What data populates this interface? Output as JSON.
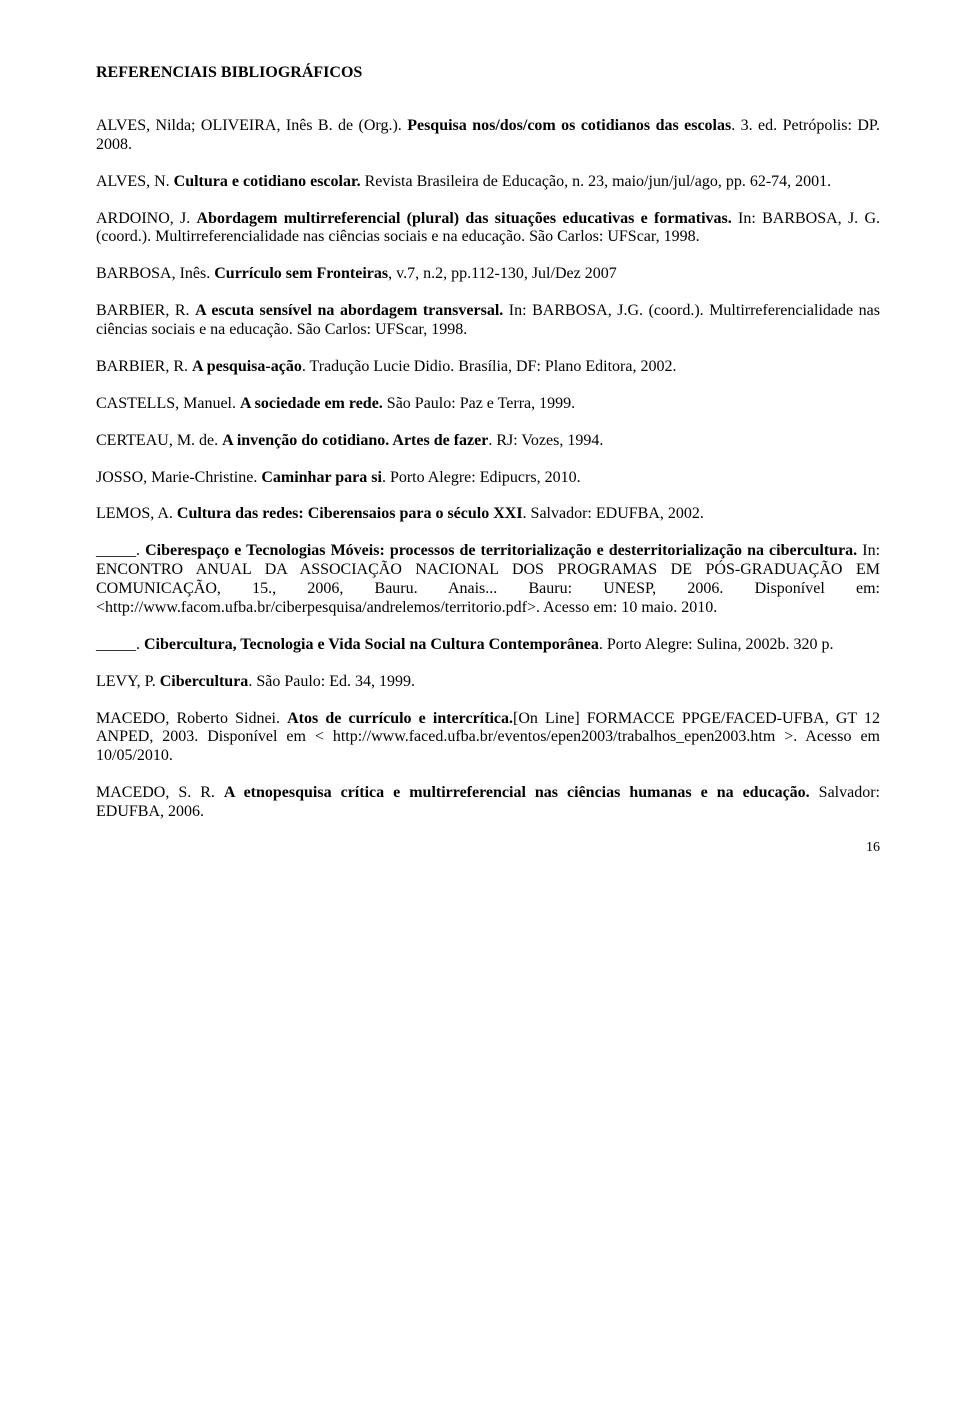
{
  "title": "REFERENCIAIS BIBLIOGRÁFICOS",
  "entries": [
    {
      "html": "ALVES, Nilda; OLIVEIRA, Inês B. de (Org.). <span class='b'>Pesquisa nos/dos/com os cotidianos das escolas</span>. 3. ed. Petrópolis: DP. 2008."
    },
    {
      "html": "ALVES, N. <span class='b'>Cultura e cotidiano escolar.</span> Revista Brasileira de Educação, n. 23, maio/jun/jul/ago, pp. 62-74, 2001."
    },
    {
      "html": "ARDOINO, J. <span class='b'>Abordagem multirreferencial (plural) das situações educativas e formativas.</span> In: BARBOSA, J. G. (coord.). Multirreferencialidade nas ciências sociais e na educação. São Carlos: UFScar, 1998."
    },
    {
      "html": "BARBOSA, Inês. <span class='b'>Currículo sem Fronteiras</span>, v.7, n.2, pp.112-130, Jul/Dez 2007"
    },
    {
      "html": "BARBIER, R. <span class='b'>A escuta sensível na abordagem transversal.</span> In: BARBOSA, J.G. (coord.). Multirreferencialidade nas ciências sociais e na educação. São Carlos: UFScar, 1998."
    },
    {
      "html": "BARBIER, R. <span class='b'>A pesquisa-ação</span>. Tradução Lucie Didio. Brasília, DF: Plano Editora, 2002."
    },
    {
      "html": "CASTELLS, Manuel. <span class='b'>A sociedade em rede.</span> São Paulo: Paz e Terra, 1999."
    },
    {
      "html": "CERTEAU, M. de. <span class='b'>A invenção do cotidiano. Artes de fazer</span>. RJ: Vozes, 1994."
    },
    {
      "html": "JOSSO, Marie-Christine. <span class='b'>Caminhar para si</span>. Porto Alegre: Edipucrs, 2010."
    },
    {
      "html": "LEMOS, A. <span class='b'>Cultura das redes: Ciberensaios para o século XXI</span>. Salvador: EDUFBA, 2002."
    },
    {
      "html": "_____. <span class='b'>Ciberespaço e Tecnologias Móveis: processos de territorialização e desterritorialização na cibercultura.</span> In: ENCONTRO ANUAL DA ASSOCIAÇÃO NACIONAL DOS PROGRAMAS DE PÓS-GRADUAÇÃO EM COMUNICAÇÃO, 15., 2006, Bauru. Anais... Bauru: UNESP, 2006. Disponível em: &lt;http://www.facom.ufba.br/ciberpesquisa/andrelemos/territorio.pdf&gt;. Acesso em: 10 maio. 2010."
    },
    {
      "html": "_____. <span class='b'>Cibercultura, Tecnologia e Vida Social na Cultura Contemporânea</span>. Porto Alegre: Sulina, 2002b. 320 p."
    },
    {
      "html": "LEVY, P. <span class='b'>Cibercultura</span>. São Paulo: Ed. 34, 1999."
    },
    {
      "html": "MACEDO, Roberto Sidnei. <span class='b'>Atos de currículo e intercrítica.</span>[On Line] FORMACCE PPGE/FACED-UFBA, GT 12 ANPED, 2003. Disponível em &lt; http://www.faced.ufba.br/eventos/epen2003/trabalhos_epen2003.htm &gt;. Acesso em 10/05/2010."
    },
    {
      "html": "MACEDO, S. R. <span class='b'>A etnopesquisa crítica e multirreferencial nas ciências humanas e na educação.</span> Salvador: EDUFBA, 2006."
    }
  ],
  "page_number": "16",
  "colors": {
    "text": "#000000",
    "background": "#ffffff"
  },
  "typography": {
    "font_family": "Times New Roman",
    "body_fontsize_pt": 12,
    "title_weight": "bold"
  }
}
